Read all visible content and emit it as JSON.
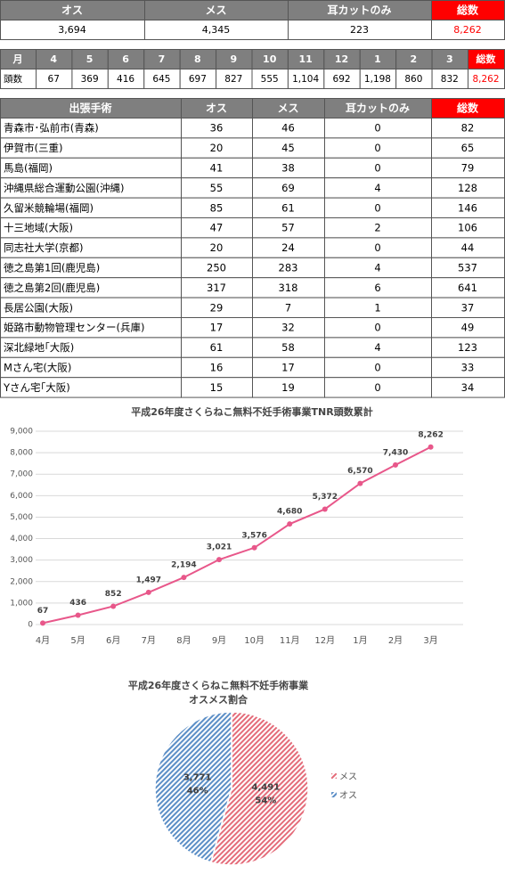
{
  "summary_table": {
    "header": [
      "オス",
      "メス",
      "耳カットのみ",
      "総数"
    ],
    "row": [
      "3,694",
      "4,345",
      "223",
      "8,262"
    ]
  },
  "monthly_table": {
    "header": [
      "月",
      "4",
      "5",
      "6",
      "7",
      "8",
      "9",
      "10",
      "11",
      "12",
      "1",
      "2",
      "3",
      "総数"
    ],
    "row": [
      "頭数",
      "67",
      "369",
      "416",
      "645",
      "697",
      "827",
      "555",
      "1,104",
      "692",
      "1,198",
      "860",
      "832",
      "8,262"
    ]
  },
  "site_table": {
    "header": [
      "出張手術",
      "オス",
      "メス",
      "耳カットのみ",
      "総数"
    ],
    "rows": [
      [
        "青森市･弘前市(青森)",
        "36",
        "46",
        "0",
        "82"
      ],
      [
        "伊賀市(三重)",
        "20",
        "45",
        "0",
        "65"
      ],
      [
        "馬島(福岡)",
        "41",
        "38",
        "0",
        "79"
      ],
      [
        "沖縄県総合運動公園(沖縄)",
        "55",
        "69",
        "4",
        "128"
      ],
      [
        "久留米競輪場(福岡)",
        "85",
        "61",
        "0",
        "146"
      ],
      [
        "十三地域(大阪)",
        "47",
        "57",
        "2",
        "106"
      ],
      [
        "同志社大学(京都)",
        "20",
        "24",
        "0",
        "44"
      ],
      [
        "徳之島第1回(鹿児島)",
        "250",
        "283",
        "4",
        "537"
      ],
      [
        "徳之島第2回(鹿児島)",
        "317",
        "318",
        "6",
        "641"
      ],
      [
        "長居公園(大阪)",
        "29",
        "7",
        "1",
        "37"
      ],
      [
        "姫路市動物管理センター(兵庫)",
        "17",
        "32",
        "0",
        "49"
      ],
      [
        "深北緑地｢大阪)",
        "61",
        "58",
        "4",
        "123"
      ],
      [
        "Mさん宅(大阪)",
        "16",
        "17",
        "0",
        "33"
      ],
      [
        "Yさん宅｢大阪)",
        "15",
        "19",
        "0",
        "34"
      ]
    ]
  },
  "chart_data": [
    {
      "type": "line",
      "title": "平成26年度さくらねこ無料不妊手術事業TNR頭数累計",
      "categories": [
        "4月",
        "5月",
        "6月",
        "7月",
        "8月",
        "9月",
        "10月",
        "11月",
        "12月",
        "1月",
        "2月",
        "3月"
      ],
      "values": [
        67,
        436,
        852,
        1497,
        2194,
        3021,
        3576,
        4680,
        5372,
        6570,
        7430,
        8262
      ],
      "value_labels": [
        "67",
        "436",
        "852",
        "1,497",
        "2,194",
        "3,021",
        "3,576",
        "4,680",
        "5,372",
        "6,570",
        "7,430",
        "8,262"
      ],
      "color": "#e8578a",
      "ylim": [
        0,
        9000
      ],
      "yticks": [
        0,
        {
          "value": 1000,
          "label": "1,000"
        },
        {
          "value": 2000,
          "label": "2,000"
        },
        {
          "value": 3000,
          "label": "3,000"
        },
        {
          "value": 4000,
          "label": "4,000"
        },
        {
          "value": 5000,
          "label": "5,000"
        },
        {
          "value": 6000,
          "label": "6,000"
        },
        {
          "value": 7000,
          "label": "7,000"
        },
        {
          "value": 8000,
          "label": "8,000"
        },
        {
          "value": 9000,
          "label": "9,000"
        }
      ],
      "grid": true
    },
    {
      "type": "pie",
      "title": "平成26年度さくらねこ無料不妊手術事業",
      "subtitle": "オスメス割合",
      "categories": [
        "メス",
        "オス"
      ],
      "values": [
        4491,
        3771
      ],
      "value_labels": [
        "4,491",
        "3,771"
      ],
      "percents": [
        54,
        46
      ],
      "percent_labels": [
        "54%",
        "46%"
      ],
      "colors": [
        "#e46c7a",
        "#5b8ec6"
      ],
      "legend": "right"
    }
  ]
}
